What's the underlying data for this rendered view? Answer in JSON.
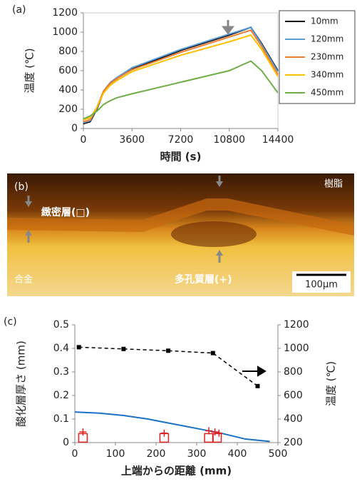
{
  "chart_data": [
    {
      "type": "line",
      "panel_label": "(a)",
      "x_label": "時間 (s)",
      "y_label": "温度 (℃)",
      "x": [
        0,
        500,
        1000,
        1500,
        2000,
        2500,
        3600,
        7200,
        10800,
        12400,
        13200,
        14400
      ],
      "series": [
        {
          "name": "10mm",
          "color": "#000000",
          "values": [
            50,
            70,
            200,
            380,
            470,
            520,
            620,
            810,
            970,
            1050,
            880,
            600
          ]
        },
        {
          "name": "120mm",
          "color": "#5b9bd5",
          "values": [
            60,
            80,
            210,
            390,
            480,
            530,
            630,
            820,
            980,
            1050,
            870,
            590
          ]
        },
        {
          "name": "230mm",
          "color": "#ed7d31",
          "values": [
            70,
            90,
            220,
            390,
            470,
            520,
            610,
            790,
            950,
            1020,
            850,
            560
          ]
        },
        {
          "name": "340mm",
          "color": "#ffc000",
          "values": [
            90,
            110,
            220,
            370,
            450,
            500,
            590,
            760,
            900,
            970,
            820,
            540
          ]
        },
        {
          "name": "450mm",
          "color": "#70ad47",
          "values": [
            100,
            130,
            180,
            250,
            290,
            320,
            360,
            480,
            600,
            700,
            600,
            370
          ]
        }
      ],
      "xlim": [
        0,
        14400
      ],
      "xticks": [
        0,
        3600,
        7200,
        10800,
        14400
      ],
      "ylim": [
        0,
        1200
      ],
      "yticks": [
        0,
        200,
        400,
        600,
        800,
        1000,
        1200
      ],
      "legend": "outside right",
      "grid": false
    },
    {
      "type": "line",
      "panel_label": "(c)",
      "x_label": "上端からの距離 (mm)",
      "y_label": "酸化層厚さ (mm)",
      "y2_label": "温度 (℃)",
      "series": [
        {
          "color": "#000000",
          "dash": true,
          "marker": "square",
          "axis": "y2",
          "x": [
            10,
            120,
            230,
            340,
            450
          ],
          "values": [
            1010,
            995,
            980,
            960,
            680
          ]
        },
        {
          "color": "#1a72c4",
          "marker": "none",
          "x": [
            0,
            60,
            120,
            180,
            240,
            300,
            360,
            420,
            480
          ],
          "values": [
            0.13,
            0.125,
            0.115,
            0.1,
            0.08,
            0.06,
            0.04,
            0.015,
            0.005
          ]
        },
        {
          "color": "#e02020",
          "marker": "plus",
          "x": [
            20,
            220,
            330,
            345,
            355
          ],
          "values": [
            0.045,
            0.04,
            0.05,
            0.045,
            0.04
          ]
        },
        {
          "color": "#e02020",
          "marker": "square-open",
          "x": [
            20,
            220,
            330,
            350
          ],
          "values": [
            0.02,
            0.02,
            0.02,
            0.02
          ]
        }
      ],
      "xlim": [
        0,
        500
      ],
      "xticks": [
        0,
        100,
        200,
        300,
        400,
        500
      ],
      "ylim": [
        0,
        0.5
      ],
      "yticks": [
        0,
        0.1,
        0.2,
        0.3,
        0.4,
        0.5
      ],
      "y2lim": [
        200,
        1200
      ],
      "y2ticks": [
        200,
        400,
        600,
        800,
        1000,
        1200
      ],
      "grid": false
    }
  ],
  "micrograph": {
    "panel_label": "(b)",
    "resin": "樹脂",
    "dense_layer": "緻密層(□)",
    "porous_layer": "多孔質層(+)",
    "alloy": "合金",
    "scale_bar": "100μm"
  }
}
